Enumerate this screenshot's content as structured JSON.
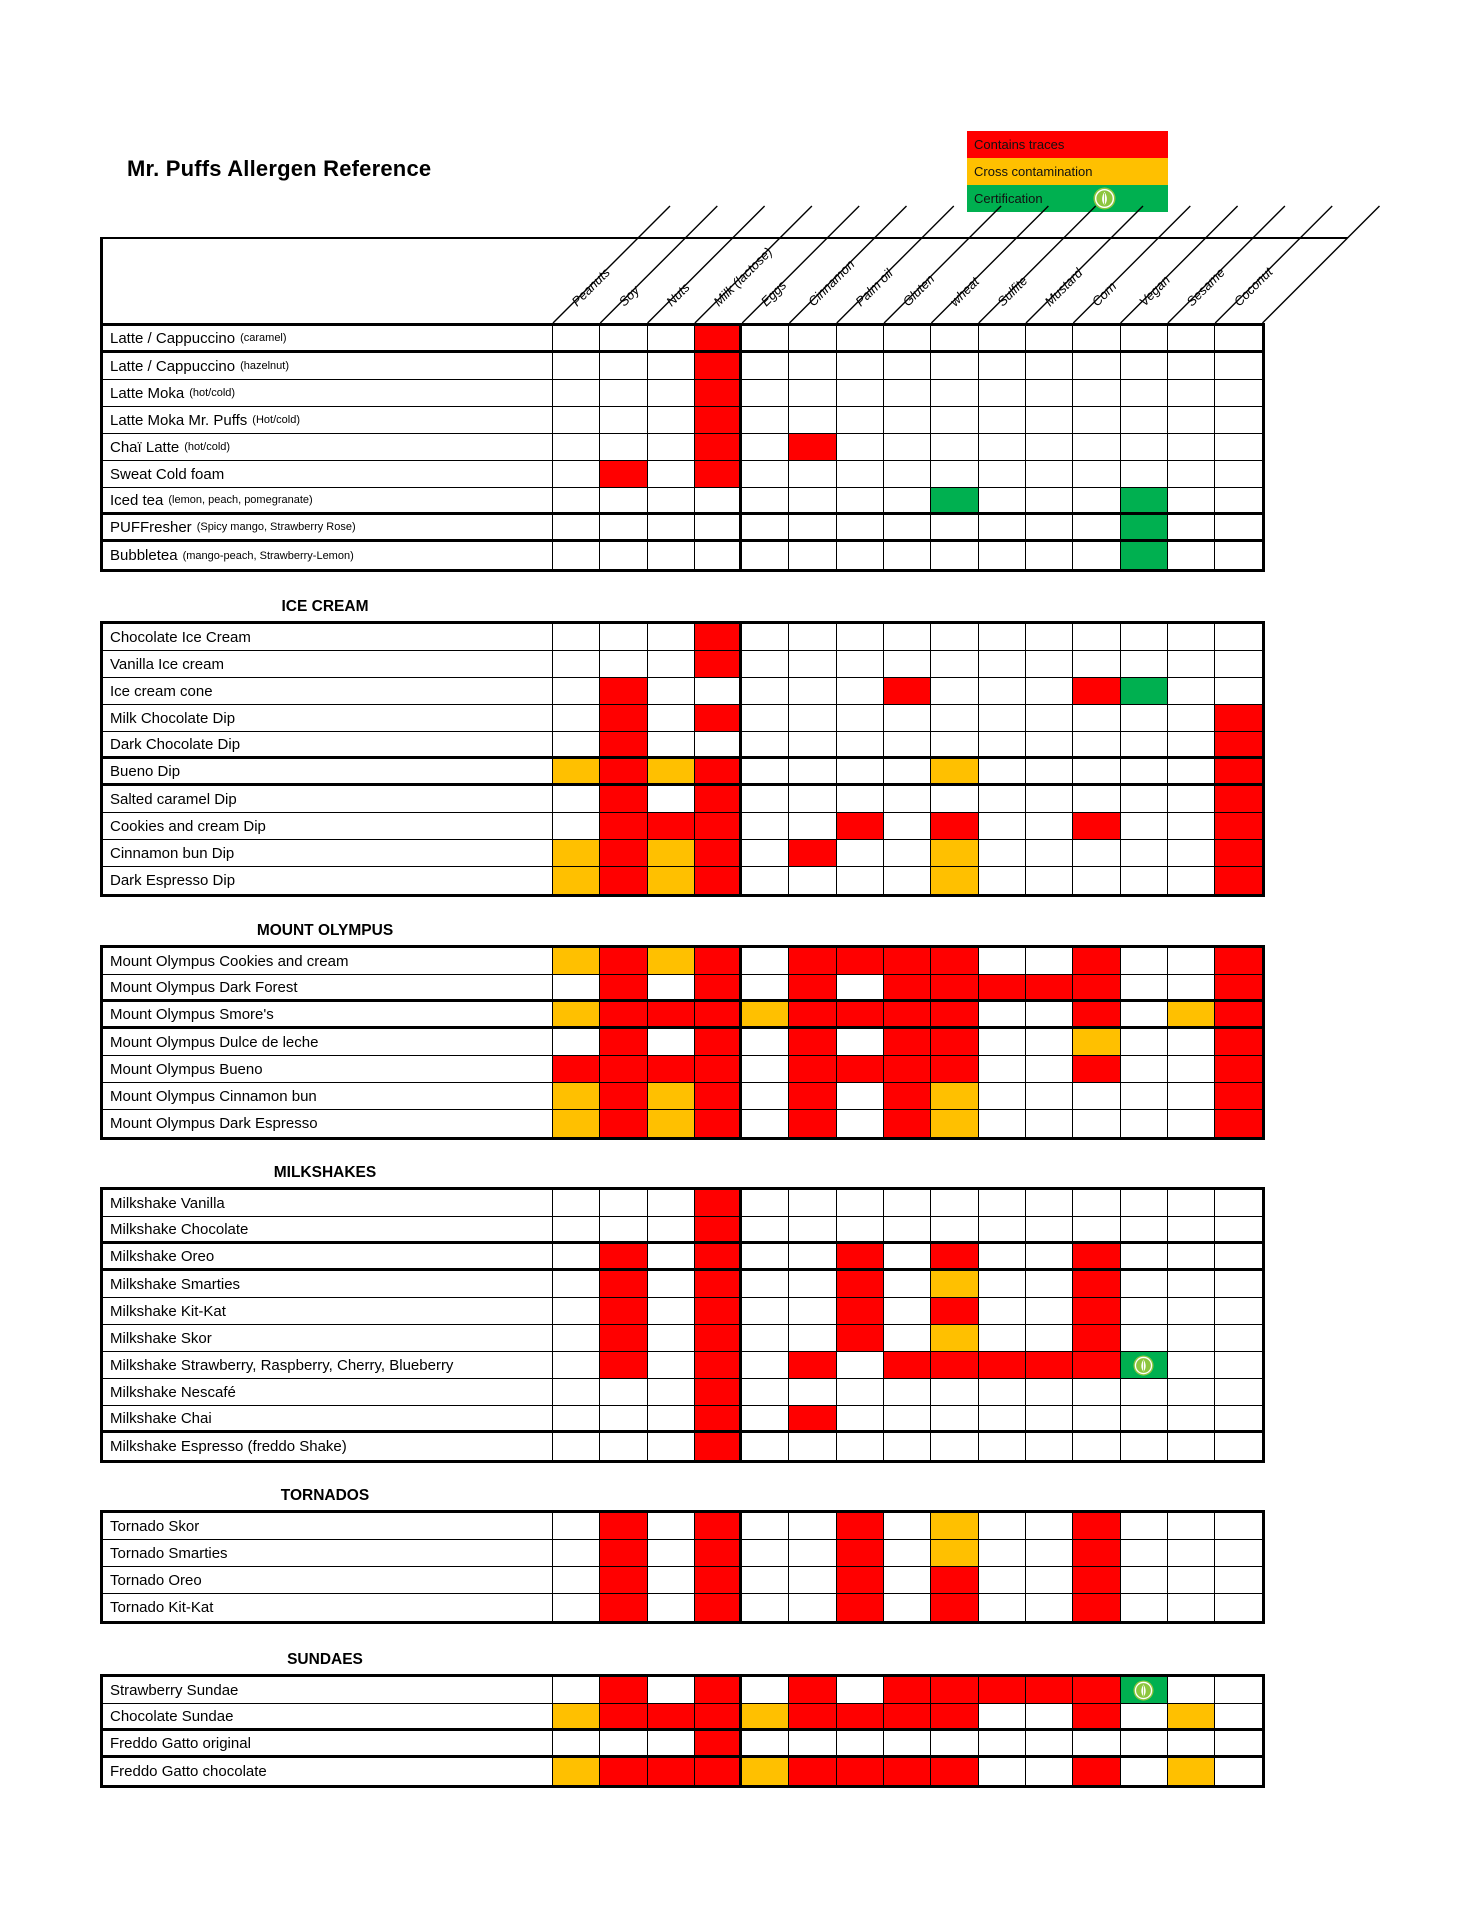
{
  "title": "Mr. Puffs Allergen Reference",
  "legend": [
    {
      "label": "Contains traces",
      "color": "#FF0000",
      "icon": null
    },
    {
      "label": "Cross contamination",
      "color": "#FFC000",
      "icon": null
    },
    {
      "label": "Certification",
      "color": "#00B050",
      "icon": "vegan-certification-badge"
    }
  ],
  "colors": {
    "contains_traces": "#FF0000",
    "cross_contamination": "#FFC000",
    "certification": "#00B050",
    "badge_green": "#8DC63F"
  },
  "cell_codes": {
    "R": "contains_traces",
    "O": "cross_contamination",
    "G": "certification",
    "GL": "certification_with_badge"
  },
  "columns": [
    "Peanuts",
    "Soy",
    "Nuts",
    "Milk (lactose)",
    "Eggs",
    "Cinnamon",
    "Palm oil",
    "Gluten",
    "wheat",
    "Sulfite",
    "Mustard",
    "Corn",
    "Vegan",
    "Sesame",
    "Coconut"
  ],
  "sections": [
    {
      "title": null,
      "rows": [
        {
          "label": "Latte / Cappuccino",
          "suffix": "(caramel)",
          "cells": {
            "4": "R"
          },
          "thick_bottom": true
        },
        {
          "label": "Latte / Cappuccino",
          "suffix": "(hazelnut)",
          "cells": {
            "4": "R"
          }
        },
        {
          "label": "Latte Moka",
          "suffix": "(hot/cold)",
          "cells": {
            "4": "R"
          }
        },
        {
          "label": "Latte Moka Mr. Puffs",
          "suffix": "(Hot/cold)",
          "cells": {
            "4": "R"
          }
        },
        {
          "label": "Chaï Latte",
          "suffix": "(hot/cold)",
          "cells": {
            "4": "R",
            "6": "R"
          }
        },
        {
          "label": "Sweat Cold foam",
          "suffix": "",
          "cells": {
            "2": "R",
            "4": "R"
          }
        },
        {
          "label": "Iced tea",
          "suffix": "(lemon, peach, pomegranate)",
          "cells": {
            "9": "G",
            "13": "G"
          },
          "thick_bottom": true
        },
        {
          "label": "PUFFresher",
          "suffix": "(Spicy mango, Strawberry Rose)",
          "cells": {
            "13": "G"
          },
          "thick_bottom": true
        },
        {
          "label": "Bubbletea",
          "suffix": "(mango-peach, Strawberry-Lemon)",
          "cells": {
            "13": "G"
          }
        }
      ]
    },
    {
      "title": "ICE CREAM",
      "rows": [
        {
          "label": "Chocolate Ice Cream",
          "suffix": "",
          "cells": {
            "4": "R"
          }
        },
        {
          "label": "Vanilla Ice cream",
          "suffix": "",
          "cells": {
            "4": "R"
          }
        },
        {
          "label": "Ice cream cone",
          "suffix": "",
          "cells": {
            "2": "R",
            "8": "R",
            "12": "R",
            "13": "G"
          }
        },
        {
          "label": "Milk Chocolate Dip",
          "suffix": "",
          "cells": {
            "2": "R",
            "4": "R",
            "15": "R"
          }
        },
        {
          "label": "Dark Chocolate Dip",
          "suffix": "",
          "cells": {
            "2": "R",
            "15": "R"
          },
          "thick_bottom": true
        },
        {
          "label": "Bueno Dip",
          "suffix": "",
          "cells": {
            "1": "O",
            "2": "R",
            "3": "O",
            "4": "R",
            "9": "O",
            "15": "R"
          },
          "thick_bottom": true
        },
        {
          "label": "Salted caramel Dip",
          "suffix": "",
          "cells": {
            "2": "R",
            "4": "R",
            "15": "R"
          }
        },
        {
          "label": "Cookies and cream Dip",
          "suffix": "",
          "cells": {
            "2": "R",
            "3": "R",
            "4": "R",
            "7": "R",
            "9": "R",
            "12": "R",
            "15": "R"
          }
        },
        {
          "label": "Cinnamon bun Dip",
          "suffix": "",
          "cells": {
            "1": "O",
            "2": "R",
            "3": "O",
            "4": "R",
            "6": "R",
            "9": "O",
            "15": "R"
          }
        },
        {
          "label": "Dark Espresso Dip",
          "suffix": "",
          "cells": {
            "1": "O",
            "2": "R",
            "3": "O",
            "4": "R",
            "9": "O",
            "15": "R"
          }
        }
      ]
    },
    {
      "title": "MOUNT OLYMPUS",
      "rows": [
        {
          "label": "Mount Olympus Cookies and cream",
          "suffix": "",
          "cells": {
            "1": "O",
            "2": "R",
            "3": "O",
            "4": "R",
            "6": "R",
            "7": "R",
            "8": "R",
            "9": "R",
            "12": "R",
            "15": "R"
          }
        },
        {
          "label": "Mount Olympus Dark Forest",
          "suffix": "",
          "cells": {
            "2": "R",
            "4": "R",
            "6": "R",
            "8": "R",
            "9": "R",
            "10": "R",
            "11": "R",
            "12": "R",
            "15": "R"
          },
          "thick_bottom": true
        },
        {
          "label": "Mount Olympus Smore's",
          "suffix": "",
          "cells": {
            "1": "O",
            "2": "R",
            "3": "R",
            "4": "R",
            "5": "O",
            "6": "R",
            "7": "R",
            "8": "R",
            "9": "R",
            "12": "R",
            "14": "O",
            "15": "R"
          },
          "thick_bottom": true
        },
        {
          "label": "Mount Olympus Dulce de leche",
          "suffix": "",
          "cells": {
            "2": "R",
            "4": "R",
            "6": "R",
            "8": "R",
            "9": "R",
            "12": "O",
            "15": "R"
          }
        },
        {
          "label": "Mount Olympus Bueno",
          "suffix": "",
          "cells": {
            "1": "R",
            "2": "R",
            "3": "R",
            "4": "R",
            "6": "R",
            "7": "R",
            "8": "R",
            "9": "R",
            "12": "R",
            "15": "R"
          }
        },
        {
          "label": "Mount Olympus Cinnamon bun",
          "suffix": "",
          "cells": {
            "1": "O",
            "2": "R",
            "3": "O",
            "4": "R",
            "6": "R",
            "8": "R",
            "9": "O",
            "15": "R"
          }
        },
        {
          "label": "Mount Olympus Dark Espresso",
          "suffix": "",
          "cells": {
            "1": "O",
            "2": "R",
            "3": "O",
            "4": "R",
            "6": "R",
            "8": "R",
            "9": "O",
            "15": "R"
          }
        }
      ]
    },
    {
      "title": "MILKSHAKES",
      "rows": [
        {
          "label": "Milkshake Vanilla",
          "suffix": "",
          "cells": {
            "4": "R"
          }
        },
        {
          "label": "Milkshake Chocolate",
          "suffix": "",
          "cells": {
            "4": "R"
          },
          "thick_bottom": true
        },
        {
          "label": "Milkshake Oreo",
          "suffix": "",
          "cells": {
            "2": "R",
            "4": "R",
            "7": "R",
            "9": "R",
            "12": "R"
          },
          "thick_bottom": true
        },
        {
          "label": "Milkshake Smarties",
          "suffix": "",
          "cells": {
            "2": "R",
            "4": "R",
            "7": "R",
            "9": "O",
            "12": "R"
          }
        },
        {
          "label": "Milkshake Kit-Kat",
          "suffix": "",
          "cells": {
            "2": "R",
            "4": "R",
            "7": "R",
            "9": "R",
            "12": "R"
          }
        },
        {
          "label": "Milkshake Skor",
          "suffix": "",
          "cells": {
            "2": "R",
            "4": "R",
            "7": "R",
            "9": "O",
            "12": "R"
          }
        },
        {
          "label": "Milkshake Strawberry, Raspberry, Cherry, Blueberry",
          "suffix": "",
          "cells": {
            "2": "R",
            "4": "R",
            "6": "R",
            "8": "R",
            "9": "R",
            "10": "R",
            "11": "R",
            "12": "R",
            "13": "GL"
          }
        },
        {
          "label": "Milkshake Nescafé",
          "suffix": "",
          "cells": {
            "4": "R"
          }
        },
        {
          "label": "Milkshake Chai",
          "suffix": "",
          "cells": {
            "4": "R",
            "6": "R"
          },
          "thick_bottom": true
        },
        {
          "label": "Milkshake Espresso (freddo Shake)",
          "suffix": "",
          "cells": {
            "4": "R"
          }
        }
      ]
    },
    {
      "title": "TORNADOS",
      "rows": [
        {
          "label": "Tornado Skor",
          "suffix": "",
          "cells": {
            "2": "R",
            "4": "R",
            "7": "R",
            "9": "O",
            "12": "R"
          }
        },
        {
          "label": "Tornado Smarties",
          "suffix": "",
          "cells": {
            "2": "R",
            "4": "R",
            "7": "R",
            "9": "O",
            "12": "R"
          }
        },
        {
          "label": "Tornado Oreo",
          "suffix": "",
          "cells": {
            "2": "R",
            "4": "R",
            "7": "R",
            "9": "R",
            "12": "R"
          }
        },
        {
          "label": "Tornado Kit-Kat",
          "suffix": "",
          "cells": {
            "2": "R",
            "4": "R",
            "7": "R",
            "9": "R",
            "12": "R"
          }
        }
      ]
    },
    {
      "title": "SUNDAES",
      "rows": [
        {
          "label": "Strawberry Sundae",
          "suffix": "",
          "cells": {
            "2": "R",
            "4": "R",
            "6": "R",
            "8": "R",
            "9": "R",
            "10": "R",
            "11": "R",
            "12": "R",
            "13": "GL"
          }
        },
        {
          "label": "Chocolate Sundae",
          "suffix": "",
          "cells": {
            "1": "O",
            "2": "R",
            "3": "R",
            "4": "R",
            "5": "O",
            "6": "R",
            "7": "R",
            "8": "R",
            "9": "R",
            "12": "R",
            "14": "O"
          },
          "thick_bottom": true
        },
        {
          "label": "Freddo Gatto original",
          "suffix": "",
          "cells": {
            "4": "R"
          },
          "thick_bottom": true
        },
        {
          "label": "Freddo Gatto chocolate",
          "suffix": "",
          "cells": {
            "1": "O",
            "2": "R",
            "3": "R",
            "4": "R",
            "5": "O",
            "6": "R",
            "7": "R",
            "8": "R",
            "9": "R",
            "12": "R",
            "14": "O"
          }
        }
      ]
    }
  ]
}
